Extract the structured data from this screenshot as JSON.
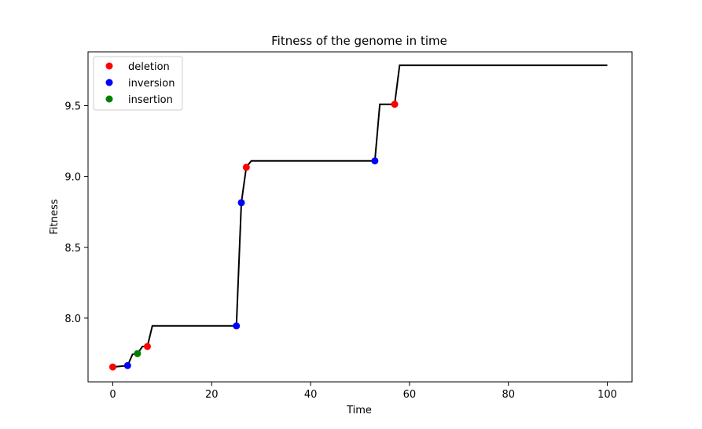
{
  "chart_data": {
    "type": "line",
    "title": "Fitness of the genome in time",
    "xlabel": "Time",
    "ylabel": "Fitness",
    "xlim": [
      -5,
      105
    ],
    "ylim": [
      7.55,
      9.88
    ],
    "xticks": [
      0,
      20,
      40,
      60,
      80,
      100
    ],
    "yticks": [
      8.0,
      8.5,
      9.0,
      9.5
    ],
    "ytick_labels": [
      "8.0",
      "8.5",
      "9.0",
      "9.5"
    ],
    "grid": false,
    "legend_position": "top-left",
    "line": {
      "color": "#000000",
      "x": [
        0,
        3,
        4,
        5,
        6,
        7,
        8,
        25,
        26,
        27,
        28,
        53,
        54,
        57,
        58,
        100
      ],
      "y": [
        7.655,
        7.665,
        7.745,
        7.75,
        7.8,
        7.8,
        7.945,
        7.945,
        8.815,
        9.065,
        9.11,
        9.11,
        9.51,
        9.51,
        9.785,
        9.785
      ]
    },
    "series": [
      {
        "name": "deletion",
        "color": "#ff0000",
        "x": [
          0,
          7,
          27,
          57
        ],
        "y": [
          7.655,
          7.8,
          9.065,
          9.51
        ]
      },
      {
        "name": "inversion",
        "color": "#0000ff",
        "x": [
          3,
          25,
          26,
          53
        ],
        "y": [
          7.665,
          7.945,
          8.815,
          9.11
        ]
      },
      {
        "name": "insertion",
        "color": "#008000",
        "x": [
          5
        ],
        "y": [
          7.75
        ]
      }
    ]
  }
}
